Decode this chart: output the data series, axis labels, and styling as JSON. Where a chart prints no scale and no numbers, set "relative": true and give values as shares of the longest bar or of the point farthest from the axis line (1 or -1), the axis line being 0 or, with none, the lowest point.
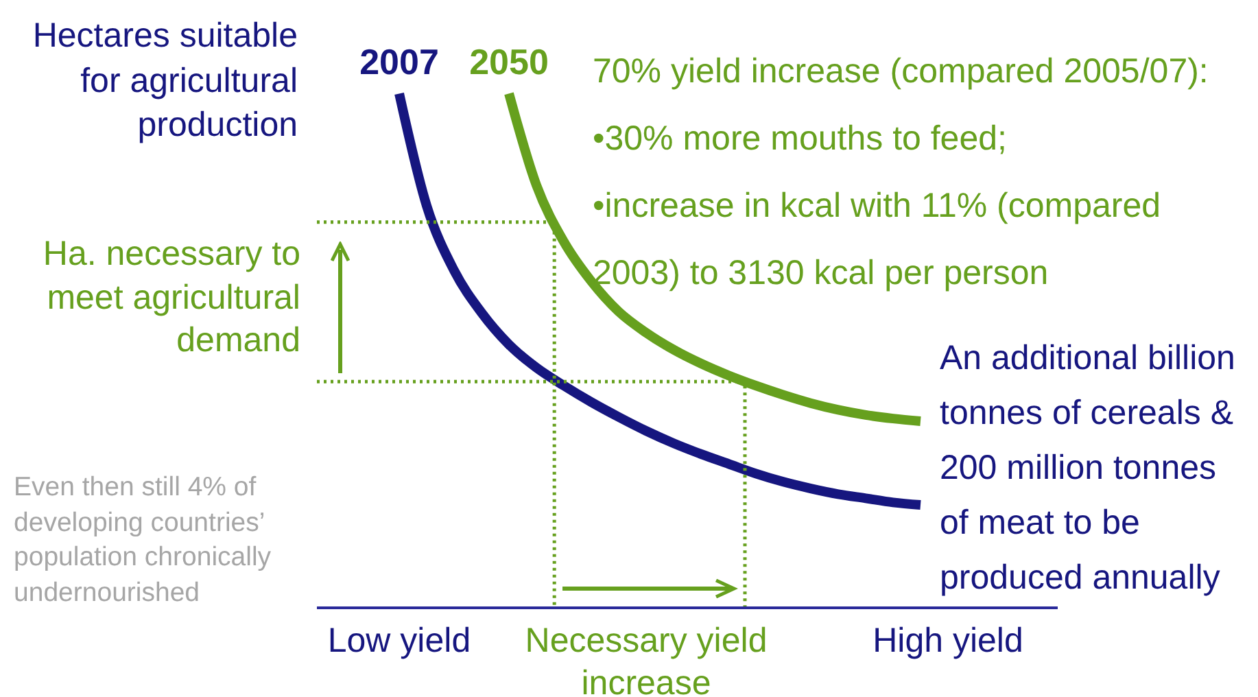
{
  "chart_data": {
    "type": "line",
    "relative": true,
    "ylabel": "Hectares suitable for agricultural production",
    "marker": "none",
    "categories": [
      null,
      null,
      null,
      "Low yield",
      null,
      null,
      null,
      null,
      null,
      null,
      null,
      null,
      "Necessary yield increase",
      null,
      null,
      null,
      null,
      null,
      null,
      null,
      null,
      null,
      null,
      "High yield",
      null,
      null,
      null,
      null
    ],
    "series": [
      {
        "name": "2007",
        "color": "#16167f",
        "values": [
          null,
          null,
          null,
          1.0,
          0.782,
          0.656,
          0.574,
          0.512,
          0.467,
          0.432,
          0.4,
          0.371,
          0.344,
          0.32,
          0.299,
          0.28,
          0.261,
          0.245,
          0.232,
          0.221,
          0.213,
          0.205,
          0.2,
          null,
          null,
          null,
          null,
          null
        ]
      },
      {
        "name": "2050",
        "color": "#66a01e",
        "values": [
          null,
          null,
          null,
          null,
          null,
          null,
          null,
          1.0,
          0.822,
          0.712,
          0.635,
          0.576,
          0.535,
          0.502,
          0.475,
          0.452,
          0.432,
          0.414,
          0.398,
          0.385,
          0.375,
          0.368,
          0.363,
          null,
          null,
          null,
          null,
          null
        ]
      }
    ],
    "ref_lines": [
      {
        "axis": "y",
        "value": 0.75,
        "color": "#66a01e",
        "line_style": "dotted"
      },
      {
        "axis": "y",
        "value": 0.44,
        "color": "#66a01e",
        "line_style": "dotted"
      }
    ],
    "annotations": [
      "Ha. necessary to meet agricultural demand",
      "Even then still 4% of developing countries’ population chronically undernourished",
      "70% yield increase (compared 2005/07):",
      "•30% more mouths to feed;",
      "•increase in kcal with 11% (compared 2003) to 3130 kcal per person",
      "An additional billion tonnes of cereals & 200 million tonnes of meat to be produced annually"
    ]
  }
}
